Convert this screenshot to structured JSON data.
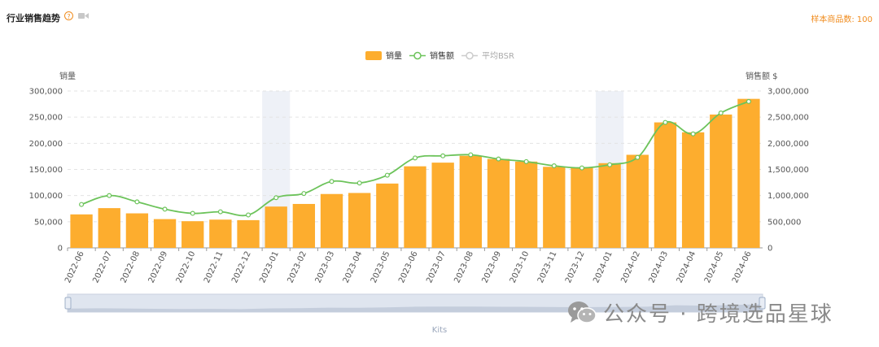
{
  "header": {
    "title": "行业销售趋势",
    "help_icon": "question-circle-icon",
    "video_icon": "video-camera-icon",
    "sample_count": "样本商品数: 100"
  },
  "watermark": {
    "icon": "wechat-icon",
    "text": "公众号 · 跨境选品星球"
  },
  "colors": {
    "bar": "#fdad2e",
    "line": "#6cc35a",
    "bsr": "#cccccc",
    "accent": "#f08c1e",
    "highlight_band": "#eef1f7"
  },
  "chart_data": {
    "type": "bar",
    "categories": [
      "2022-06",
      "2022-07",
      "2022-08",
      "2022-09",
      "2022-10",
      "2022-11",
      "2022-12",
      "2023-01",
      "2023-02",
      "2023-03",
      "2023-04",
      "2023-05",
      "2023-06",
      "2023-07",
      "2023-08",
      "2023-09",
      "2023-10",
      "2023-11",
      "2023-12",
      "2024-01",
      "2024-02",
      "2024-03",
      "2024-04",
      "2024-05",
      "2024-06"
    ],
    "legend": [
      "销量",
      "销售额",
      "平均BSR"
    ],
    "series": [
      {
        "name": "销量",
        "type": "bar",
        "axis": "left",
        "values": [
          64000,
          76000,
          66000,
          55000,
          51000,
          54000,
          53000,
          79000,
          84000,
          103000,
          105000,
          123000,
          156000,
          163000,
          176000,
          170000,
          165000,
          155000,
          153000,
          162000,
          178000,
          240000,
          221000,
          255000,
          285000
        ]
      },
      {
        "name": "销售额",
        "type": "line",
        "axis": "right",
        "values": [
          830000,
          1000000,
          880000,
          740000,
          660000,
          690000,
          630000,
          960000,
          1040000,
          1270000,
          1240000,
          1390000,
          1720000,
          1760000,
          1780000,
          1700000,
          1650000,
          1570000,
          1530000,
          1590000,
          1730000,
          2400000,
          2180000,
          2580000,
          2800000
        ]
      }
    ],
    "ylabel_left": "销量",
    "ylabel_right": "销售额 $",
    "ylim_left": [
      0,
      300000
    ],
    "ylim_right": [
      0,
      3000000
    ],
    "yticks_left": [
      "300,000",
      "250,000",
      "200,000",
      "150,000",
      "100,000",
      "50,000",
      "0"
    ],
    "yticks_right": [
      "3,000,000",
      "2,500,000",
      "2,000,000",
      "1,500,000",
      "1,000,000",
      "500,000",
      "0"
    ],
    "highlight_categories": [
      "2023-01",
      "2024-01"
    ],
    "grid": "dashed horizontal",
    "legend_position": "top-center",
    "slider_label": "Kits"
  }
}
